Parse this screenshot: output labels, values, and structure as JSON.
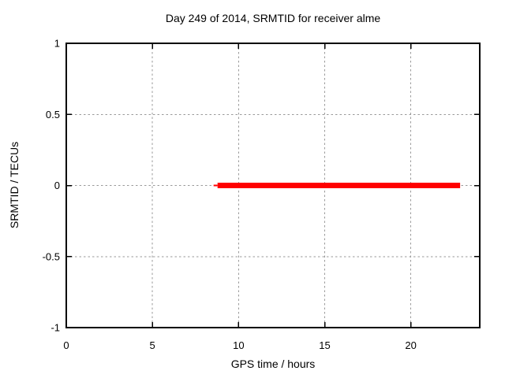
{
  "chart_data": {
    "type": "line",
    "title": "Day 249 of 2014, SRMTID for receiver alme",
    "xlabel": "GPS time / hours",
    "ylabel": "SRMTID / TECUs",
    "xlim": [
      0,
      24
    ],
    "ylim": [
      -1,
      1
    ],
    "grid": true,
    "legend": "none",
    "xticks": [
      {
        "v": 0,
        "label": "0"
      },
      {
        "v": 5,
        "label": "5"
      },
      {
        "v": 10,
        "label": "10"
      },
      {
        "v": 15,
        "label": "15"
      },
      {
        "v": 20,
        "label": "20"
      }
    ],
    "yticks": [
      {
        "v": -1,
        "label": "-1"
      },
      {
        "v": -0.5,
        "label": "-0.5"
      },
      {
        "v": 0,
        "label": "0"
      },
      {
        "v": 0.5,
        "label": "0.5"
      },
      {
        "v": 1,
        "label": "1"
      }
    ],
    "series": [
      {
        "name": "SRMTID",
        "color": "#ff0000",
        "segments": [
          {
            "linewidth": 2,
            "points": [
              [
                8.55,
                0
              ],
              [
                8.78,
                0
              ]
            ]
          },
          {
            "linewidth": 7,
            "points": [
              [
                8.78,
                0
              ],
              [
                22.86,
                0
              ]
            ]
          }
        ]
      }
    ]
  },
  "colors": {
    "background": "#ffffff",
    "border": "#000000",
    "grid": "#9a9a9a",
    "text": "#000000",
    "series_red": "#ff0000"
  }
}
